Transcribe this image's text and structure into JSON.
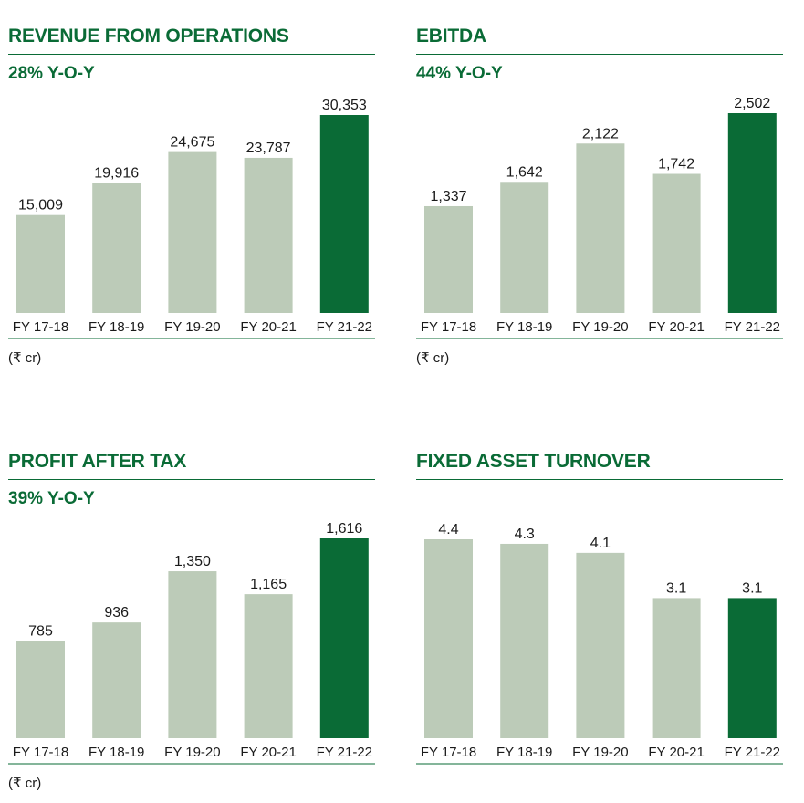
{
  "colors": {
    "accent": "#0a6b36",
    "bar": "#bccbb8",
    "highlight": "#0a6b36",
    "text": "#1a1a1a"
  },
  "panels": [
    {
      "title": "REVENUE FROM OPERATIONS",
      "subtitle": "28% Y-O-Y",
      "unit": "(₹ cr)",
      "chart_data": {
        "type": "bar",
        "title": "REVENUE FROM OPERATIONS",
        "categories": [
          "FY 17-18",
          "FY 18-19",
          "FY 19-20",
          "FY 20-21",
          "FY 21-22"
        ],
        "values": [
          15009,
          19916,
          24675,
          23787,
          30353
        ],
        "labels": [
          "15,009",
          "19,916",
          "24,675",
          "23,787",
          "30,353"
        ],
        "highlight_index": 4,
        "ylim": [
          0,
          30353
        ]
      }
    },
    {
      "title": "EBITDA",
      "subtitle": "44% Y-O-Y",
      "unit": "(₹ cr)",
      "chart_data": {
        "type": "bar",
        "title": "EBITDA",
        "categories": [
          "FY 17-18",
          "FY 18-19",
          "FY 19-20",
          "FY 20-21",
          "FY 21-22"
        ],
        "values": [
          1337,
          1642,
          2122,
          1742,
          2502
        ],
        "labels": [
          "1,337",
          "1,642",
          "2,122",
          "1,742",
          "2,502"
        ],
        "highlight_index": 4,
        "ylim": [
          0,
          2502
        ]
      }
    },
    {
      "title": "PROFIT AFTER TAX",
      "subtitle": "39% Y-O-Y",
      "unit": "(₹ cr)",
      "chart_data": {
        "type": "bar",
        "title": "PROFIT AFTER TAX",
        "categories": [
          "FY 17-18",
          "FY 18-19",
          "FY 19-20",
          "FY 20-21",
          "FY 21-22"
        ],
        "values": [
          785,
          936,
          1350,
          1165,
          1616
        ],
        "labels": [
          "785",
          "936",
          "1,350",
          "1,165",
          "1,616"
        ],
        "highlight_index": 4,
        "ylim": [
          0,
          1616
        ]
      }
    },
    {
      "title": "FIXED ASSET TURNOVER",
      "subtitle": null,
      "unit": null,
      "chart_data": {
        "type": "bar",
        "title": "FIXED ASSET TURNOVER",
        "categories": [
          "FY 17-18",
          "FY 18-19",
          "FY 19-20",
          "FY 20-21",
          "FY 21-22"
        ],
        "values": [
          4.4,
          4.3,
          4.1,
          3.1,
          3.1
        ],
        "labels": [
          "4.4",
          "4.3",
          "4.1",
          "3.1",
          "3.1"
        ],
        "highlight_index": 4,
        "ylim": [
          0,
          4.4
        ]
      }
    }
  ]
}
